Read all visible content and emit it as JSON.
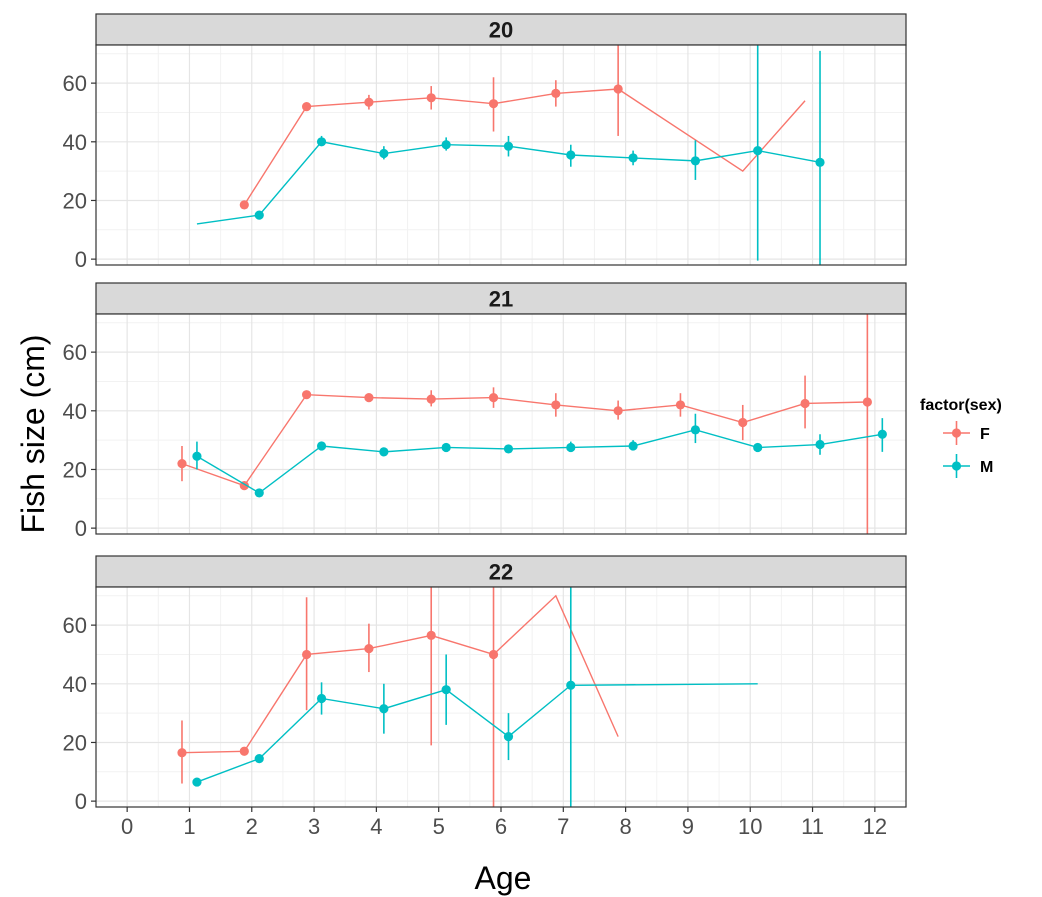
{
  "chart_data": {
    "type": "line",
    "xlabel": "Age",
    "ylabel": "Fish size (cm)",
    "xlim": [
      -0.5,
      12.5
    ],
    "ylim": [
      -2,
      73
    ],
    "x_ticks": [
      "0",
      "1",
      "2",
      "3",
      "4",
      "5",
      "6",
      "7",
      "8",
      "9",
      "10",
      "11",
      "12"
    ],
    "y_ticks": [
      "0",
      "20",
      "40",
      "60"
    ],
    "grid": true,
    "legend": {
      "title": "factor(sex)",
      "position": "right",
      "entries": [
        {
          "label": "F",
          "color": "#F8766D"
        },
        {
          "label": "M",
          "color": "#00BFC4"
        }
      ]
    },
    "facets": [
      {
        "label": "20",
        "series": [
          {
            "name": "F",
            "color": "#F8766D",
            "points": [
              {
                "x": 2,
                "y": 18.5,
                "ymin": 18.5,
                "ymax": 18.5,
                "marker": true
              },
              {
                "x": 3,
                "y": 52,
                "ymin": 51,
                "ymax": 53,
                "marker": true
              },
              {
                "x": 4,
                "y": 53.5,
                "ymin": 51,
                "ymax": 56,
                "marker": true
              },
              {
                "x": 5,
                "y": 55,
                "ymin": 51,
                "ymax": 59,
                "marker": true
              },
              {
                "x": 6,
                "y": 53,
                "ymin": 43.5,
                "ymax": 62,
                "marker": true
              },
              {
                "x": 7,
                "y": 56.5,
                "ymin": 52,
                "ymax": 61,
                "marker": true
              },
              {
                "x": 8,
                "y": 58,
                "ymin": 42,
                "ymax": 73,
                "marker": true
              },
              {
                "x": 10,
                "y": 30,
                "marker": false
              },
              {
                "x": 11,
                "y": 54,
                "marker": false
              }
            ]
          },
          {
            "name": "M",
            "color": "#00BFC4",
            "points": [
              {
                "x": 1,
                "y": 12,
                "marker": false
              },
              {
                "x": 2,
                "y": 15,
                "ymin": 15,
                "ymax": 15,
                "marker": true
              },
              {
                "x": 3,
                "y": 40,
                "ymin": 39,
                "ymax": 42,
                "marker": true
              },
              {
                "x": 4,
                "y": 36,
                "ymin": 34,
                "ymax": 38.5,
                "marker": true
              },
              {
                "x": 5,
                "y": 39,
                "ymin": 37,
                "ymax": 41.5,
                "marker": true
              },
              {
                "x": 6,
                "y": 38.5,
                "ymin": 35,
                "ymax": 42,
                "marker": true
              },
              {
                "x": 7,
                "y": 35.5,
                "ymin": 31.5,
                "ymax": 39,
                "marker": true
              },
              {
                "x": 8,
                "y": 34.5,
                "ymin": 32,
                "ymax": 37,
                "marker": true
              },
              {
                "x": 9,
                "y": 33.5,
                "ymin": 27,
                "ymax": 40.5,
                "marker": true
              },
              {
                "x": 10,
                "y": 37,
                "ymin": -0.5,
                "ymax": 73,
                "marker": true
              },
              {
                "x": 11,
                "y": 33,
                "ymin": -2,
                "ymax": 71,
                "marker": true
              }
            ]
          }
        ]
      },
      {
        "label": "21",
        "series": [
          {
            "name": "F",
            "color": "#F8766D",
            "points": [
              {
                "x": 1,
                "y": 22,
                "ymin": 16,
                "ymax": 28,
                "marker": true
              },
              {
                "x": 2,
                "y": 14.5,
                "ymin": 14,
                "ymax": 15,
                "marker": true
              },
              {
                "x": 3,
                "y": 45.5,
                "ymin": 45,
                "ymax": 46,
                "marker": true
              },
              {
                "x": 4,
                "y": 44.5,
                "ymin": 43.5,
                "ymax": 45.5,
                "marker": true
              },
              {
                "x": 5,
                "y": 44,
                "ymin": 41.5,
                "ymax": 47,
                "marker": true
              },
              {
                "x": 6,
                "y": 44.5,
                "ymin": 41,
                "ymax": 48,
                "marker": true
              },
              {
                "x": 7,
                "y": 42,
                "ymin": 38,
                "ymax": 46,
                "marker": true
              },
              {
                "x": 8,
                "y": 40,
                "ymin": 37,
                "ymax": 43.5,
                "marker": true
              },
              {
                "x": 9,
                "y": 42,
                "ymin": 38,
                "ymax": 46,
                "marker": true
              },
              {
                "x": 10,
                "y": 36,
                "ymin": 30,
                "ymax": 42,
                "marker": true
              },
              {
                "x": 11,
                "y": 42.5,
                "ymin": 34,
                "ymax": 52,
                "marker": true
              },
              {
                "x": 12,
                "y": 43,
                "ymin": -2,
                "ymax": 73,
                "marker": true
              }
            ]
          },
          {
            "name": "M",
            "color": "#00BFC4",
            "points": [
              {
                "x": 1,
                "y": 24.5,
                "ymin": 20,
                "ymax": 29.5,
                "marker": true
              },
              {
                "x": 2,
                "y": 12,
                "ymin": 11,
                "ymax": 13,
                "marker": true
              },
              {
                "x": 3,
                "y": 28,
                "ymin": 27,
                "ymax": 29,
                "marker": true
              },
              {
                "x": 4,
                "y": 26,
                "ymin": 25,
                "ymax": 27.5,
                "marker": true
              },
              {
                "x": 5,
                "y": 27.5,
                "ymin": 26.5,
                "ymax": 29,
                "marker": true
              },
              {
                "x": 6,
                "y": 27,
                "ymin": 26,
                "ymax": 28.5,
                "marker": true
              },
              {
                "x": 7,
                "y": 27.5,
                "ymin": 26,
                "ymax": 29.5,
                "marker": true
              },
              {
                "x": 8,
                "y": 28,
                "ymin": 26.5,
                "ymax": 30,
                "marker": true
              },
              {
                "x": 9,
                "y": 33.5,
                "ymin": 29,
                "ymax": 39,
                "marker": true
              },
              {
                "x": 10,
                "y": 27.5,
                "ymin": 26,
                "ymax": 29,
                "marker": true
              },
              {
                "x": 11,
                "y": 28.5,
                "ymin": 25,
                "ymax": 32,
                "marker": true
              },
              {
                "x": 12,
                "y": 32,
                "ymin": 26,
                "ymax": 37.5,
                "marker": true
              }
            ]
          }
        ]
      },
      {
        "label": "22",
        "series": [
          {
            "name": "F",
            "color": "#F8766D",
            "points": [
              {
                "x": 1,
                "y": 16.5,
                "ymin": 6,
                "ymax": 27.5,
                "marker": true
              },
              {
                "x": 2,
                "y": 17,
                "ymin": 16.5,
                "ymax": 17.5,
                "marker": true
              },
              {
                "x": 3,
                "y": 50,
                "ymin": 31,
                "ymax": 69.5,
                "marker": true
              },
              {
                "x": 4,
                "y": 52,
                "ymin": 44,
                "ymax": 60.5,
                "marker": true
              },
              {
                "x": 5,
                "y": 56.5,
                "ymin": 19,
                "ymax": 73,
                "marker": true
              },
              {
                "x": 6,
                "y": 50,
                "ymin": -2,
                "ymax": 73,
                "marker": true
              },
              {
                "x": 7,
                "y": 70,
                "marker": false
              },
              {
                "x": 8,
                "y": 22,
                "marker": false
              }
            ]
          },
          {
            "name": "M",
            "color": "#00BFC4",
            "points": [
              {
                "x": 1,
                "y": 6.5,
                "ymin": 6,
                "ymax": 7,
                "marker": true
              },
              {
                "x": 2,
                "y": 14.5,
                "ymin": 14,
                "ymax": 15,
                "marker": true
              },
              {
                "x": 3,
                "y": 35,
                "ymin": 29.5,
                "ymax": 40.5,
                "marker": true
              },
              {
                "x": 4,
                "y": 31.5,
                "ymin": 23,
                "ymax": 40,
                "marker": true
              },
              {
                "x": 5,
                "y": 38,
                "ymin": 26,
                "ymax": 50,
                "marker": true
              },
              {
                "x": 6,
                "y": 22,
                "ymin": 14,
                "ymax": 30,
                "marker": true
              },
              {
                "x": 7,
                "y": 39.5,
                "ymin": -2,
                "ymax": 73,
                "marker": true
              },
              {
                "x": 10,
                "y": 40,
                "marker": false
              }
            ]
          }
        ]
      }
    ]
  }
}
